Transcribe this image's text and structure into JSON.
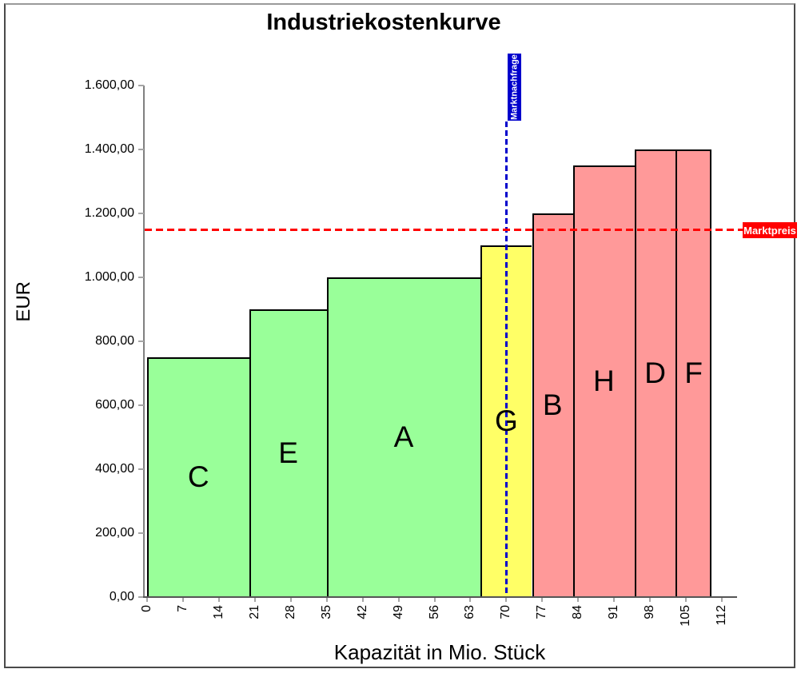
{
  "chart_data": {
    "type": "bar",
    "title": "Industriekostenkurve",
    "xlabel": "Kapazität in Mio. Stück",
    "ylabel": "EUR",
    "xlim": [
      0,
      112
    ],
    "ylim": [
      0,
      1600
    ],
    "grid": false,
    "x_ticks": [
      0,
      7,
      14,
      21,
      28,
      35,
      42,
      49,
      56,
      63,
      70,
      77,
      84,
      91,
      98,
      105,
      112
    ],
    "y_tick_values": [
      0,
      200,
      400,
      600,
      800,
      1000,
      1200,
      1400,
      1600
    ],
    "y_tick_labels": [
      "0,00",
      "200,00",
      "400,00",
      "600,00",
      "800,00",
      "1.000,00",
      "1.200,00",
      "1.400,00",
      "1.600,00"
    ],
    "bars": [
      {
        "label": "C",
        "x_start": 0,
        "x_end": 20,
        "value": 750,
        "color": "#99FF99"
      },
      {
        "label": "E",
        "x_start": 20,
        "x_end": 35,
        "value": 900,
        "color": "#99FF99"
      },
      {
        "label": "A",
        "x_start": 35,
        "x_end": 65,
        "value": 1000,
        "color": "#99FF99"
      },
      {
        "label": "G",
        "x_start": 65,
        "x_end": 75,
        "value": 1100,
        "color": "#FFFF66"
      },
      {
        "label": "B",
        "x_start": 75,
        "x_end": 83,
        "value": 1200,
        "color": "#FF9999"
      },
      {
        "label": "H",
        "x_start": 83,
        "x_end": 95,
        "value": 1350,
        "color": "#FF9999"
      },
      {
        "label": "D",
        "x_start": 95,
        "x_end": 103,
        "value": 1400,
        "color": "#FF9999"
      },
      {
        "label": "F",
        "x_start": 103,
        "x_end": 110,
        "value": 1400,
        "color": "#FF9999"
      }
    ],
    "segment_colors": {
      "green": "#99FF99",
      "yellow": "#FFFF66",
      "red": "#FF9999"
    },
    "reference_lines": {
      "vertical": {
        "label": "Marktnachfrage",
        "x": 70,
        "color": "#0000CC"
      },
      "horizontal": {
        "label": "Marktpreis",
        "y": 1150,
        "color": "#FF0000"
      }
    }
  }
}
